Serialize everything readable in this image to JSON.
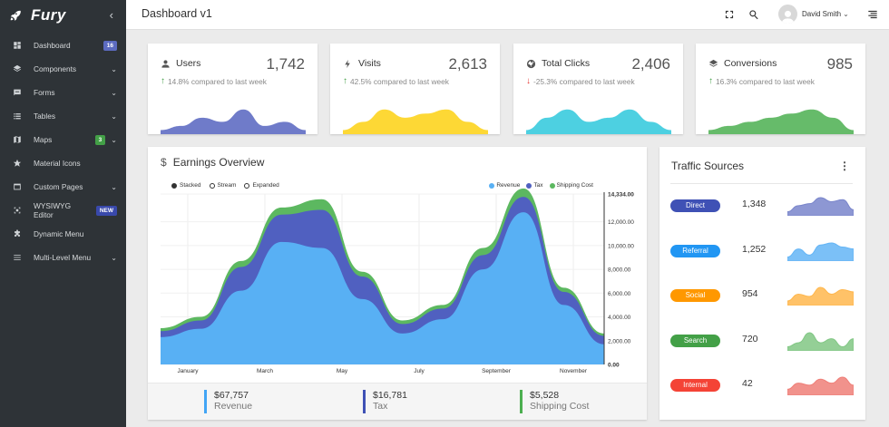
{
  "app": {
    "name": "Fury"
  },
  "sidebar": {
    "items": [
      {
        "label": "Dashboard",
        "icon": "dashboard-icon",
        "badge": "16",
        "badge_color": "#5c6bc0"
      },
      {
        "label": "Components",
        "icon": "layers-icon",
        "chevron": true
      },
      {
        "label": "Forms",
        "icon": "form-icon",
        "chevron": true
      },
      {
        "label": "Tables",
        "icon": "list-icon",
        "chevron": true
      },
      {
        "label": "Maps",
        "icon": "map-icon",
        "badge": "3",
        "badge_color": "#43a047",
        "chevron": true
      },
      {
        "label": "Material Icons",
        "icon": "star-icon"
      },
      {
        "label": "Custom Pages",
        "icon": "page-icon",
        "chevron": true
      },
      {
        "label": "WYSIWYG Editor",
        "icon": "editor-icon",
        "badge": "NEW",
        "badge_color": "#3949ab"
      },
      {
        "label": "Dynamic Menu",
        "icon": "puzzle-icon"
      },
      {
        "label": "Multi-Level Menu",
        "icon": "menu-icon",
        "chevron": true
      }
    ]
  },
  "header": {
    "title": "Dashboard v1",
    "user_name": "David Smith"
  },
  "stats": [
    {
      "label": "Users",
      "icon": "user-icon",
      "value": "1,742",
      "trend": "14.8% compared to last week",
      "trend_dir": "up",
      "color": "#6f7bc9"
    },
    {
      "label": "Visits",
      "icon": "bolt-icon",
      "value": "2,613",
      "trend": "42.5% compared to last week",
      "trend_dir": "up",
      "color": "#fdd835"
    },
    {
      "label": "Total Clicks",
      "icon": "globe-icon",
      "value": "2,406",
      "trend": "-25.3% compared to last week",
      "trend_dir": "down",
      "color": "#4dd0e1"
    },
    {
      "label": "Conversions",
      "icon": "layers-icon",
      "value": "985",
      "trend": "16.3% compared to last week",
      "trend_dir": "up",
      "color": "#66bb6a"
    }
  ],
  "earnings": {
    "title": "Earnings Overview",
    "modes": [
      "Stacked",
      "Stream",
      "Expanded"
    ],
    "selected_mode": "Stacked",
    "footer": [
      {
        "amount": "$67,757",
        "caption": "Revenue",
        "color": "#42a5f5"
      },
      {
        "amount": "$16,781",
        "caption": "Tax",
        "color": "#3f51b5"
      },
      {
        "amount": "$5,528",
        "caption": "Shipping Cost",
        "color": "#4caf50"
      }
    ]
  },
  "chart_data": {
    "type": "area",
    "stacked": true,
    "x_labels": [
      "January",
      "March",
      "May",
      "July",
      "September",
      "November"
    ],
    "y_ticks": [
      "14,334.00",
      "12,000.00",
      "10,000.00",
      "8,000.00",
      "6,000.00",
      "4,000.00",
      "2,000.00",
      "0.00"
    ],
    "y_max": 14334,
    "legend_position": "top-right",
    "series": [
      {
        "name": "Revenue",
        "color": "#58b0f4",
        "values": [
          2300,
          3000,
          6200,
          10300,
          9800,
          5500,
          2600,
          3800,
          8000,
          12800,
          5000,
          1700
        ]
      },
      {
        "name": "Tax",
        "color": "#5060c0",
        "values": [
          500,
          700,
          2000,
          2300,
          3200,
          1900,
          800,
          900,
          1200,
          1300,
          1100,
          700
        ]
      },
      {
        "name": "Shipping Cost",
        "color": "#5cb860",
        "values": [
          250,
          300,
          500,
          600,
          900,
          400,
          300,
          300,
          600,
          700,
          350,
          200
        ]
      }
    ]
  },
  "traffic": {
    "title": "Traffic Sources",
    "rows": [
      {
        "label": "Direct",
        "value": "1,348",
        "color": "#3f51b5",
        "spark_color": "#7985cb",
        "spark": [
          2,
          5,
          6,
          9,
          7,
          8,
          3
        ]
      },
      {
        "label": "Referral",
        "value": "1,252",
        "color": "#2196f3",
        "spark_color": "#64b5f6",
        "spark": [
          2,
          6,
          3,
          8,
          9,
          7,
          6
        ]
      },
      {
        "label": "Social",
        "value": "954",
        "color": "#ff9800",
        "spark_color": "#ffb74d",
        "spark": [
          2,
          5,
          4,
          8,
          5,
          7,
          6
        ]
      },
      {
        "label": "Search",
        "value": "720",
        "color": "#43a047",
        "spark_color": "#81c784",
        "spark": [
          2,
          4,
          9,
          4,
          6,
          2,
          6
        ]
      },
      {
        "label": "Internal",
        "value": "42",
        "color": "#f44336",
        "spark_color": "#ef7f78",
        "spark": [
          3,
          6,
          5,
          8,
          6,
          9,
          5
        ]
      }
    ]
  }
}
